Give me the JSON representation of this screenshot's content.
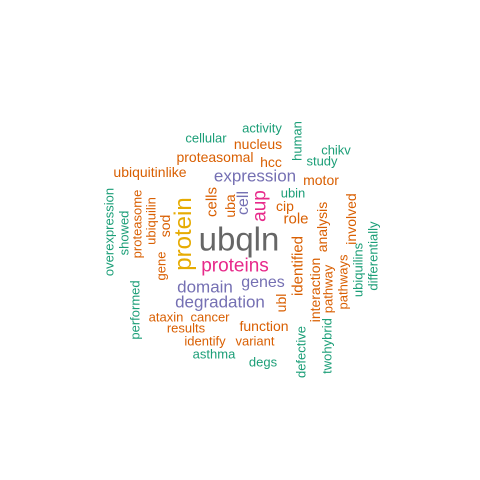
{
  "colors": {
    "teal": "#1b9e77",
    "orange": "#d95f02",
    "purple": "#7570b3",
    "magenta": "#e7298a",
    "gold": "#e6ab02",
    "gray": "#666666"
  },
  "words": [
    {
      "text": "ubqln",
      "color": "gray"
    },
    {
      "text": "protein",
      "color": "gold"
    },
    {
      "text": "proteins",
      "color": "magenta"
    },
    {
      "text": "aup",
      "color": "magenta"
    },
    {
      "text": "expression",
      "color": "purple"
    },
    {
      "text": "degradation",
      "color": "purple"
    },
    {
      "text": "domain",
      "color": "purple"
    },
    {
      "text": "genes",
      "color": "purple"
    },
    {
      "text": "cell",
      "color": "purple"
    },
    {
      "text": "activity",
      "color": "teal"
    },
    {
      "text": "human",
      "color": "teal"
    },
    {
      "text": "cellular",
      "color": "teal"
    },
    {
      "text": "chikv",
      "color": "teal"
    },
    {
      "text": "nucleus",
      "color": "orange"
    },
    {
      "text": "study",
      "color": "teal"
    },
    {
      "text": "proteasomal",
      "color": "orange"
    },
    {
      "text": "hcc",
      "color": "orange"
    },
    {
      "text": "ubiquitinlike",
      "color": "orange"
    },
    {
      "text": "motor",
      "color": "orange"
    },
    {
      "text": "ubin",
      "color": "teal"
    },
    {
      "text": "cip",
      "color": "orange"
    },
    {
      "text": "role",
      "color": "orange"
    },
    {
      "text": "cells",
      "color": "orange"
    },
    {
      "text": "uba",
      "color": "orange"
    },
    {
      "text": "overexpression",
      "color": "teal"
    },
    {
      "text": "showed",
      "color": "teal"
    },
    {
      "text": "proteasome",
      "color": "orange"
    },
    {
      "text": "ubiquilin",
      "color": "orange"
    },
    {
      "text": "sod",
      "color": "orange"
    },
    {
      "text": "gene",
      "color": "orange"
    },
    {
      "text": "identified",
      "color": "orange"
    },
    {
      "text": "interaction",
      "color": "orange"
    },
    {
      "text": "analysis",
      "color": "orange"
    },
    {
      "text": "involved",
      "color": "orange"
    },
    {
      "text": "differentially",
      "color": "teal"
    },
    {
      "text": "ubiquilins",
      "color": "teal"
    },
    {
      "text": "pathways",
      "color": "orange"
    },
    {
      "text": "pathway",
      "color": "orange"
    },
    {
      "text": "twohybrid",
      "color": "teal"
    },
    {
      "text": "defective",
      "color": "teal"
    },
    {
      "text": "ubl",
      "color": "orange"
    },
    {
      "text": "performed",
      "color": "teal"
    },
    {
      "text": "ataxin",
      "color": "orange"
    },
    {
      "text": "cancer",
      "color": "orange"
    },
    {
      "text": "results",
      "color": "orange"
    },
    {
      "text": "function",
      "color": "orange"
    },
    {
      "text": "identify",
      "color": "orange"
    },
    {
      "text": "variant",
      "color": "orange"
    },
    {
      "text": "asthma",
      "color": "teal"
    },
    {
      "text": "degs",
      "color": "teal"
    }
  ]
}
